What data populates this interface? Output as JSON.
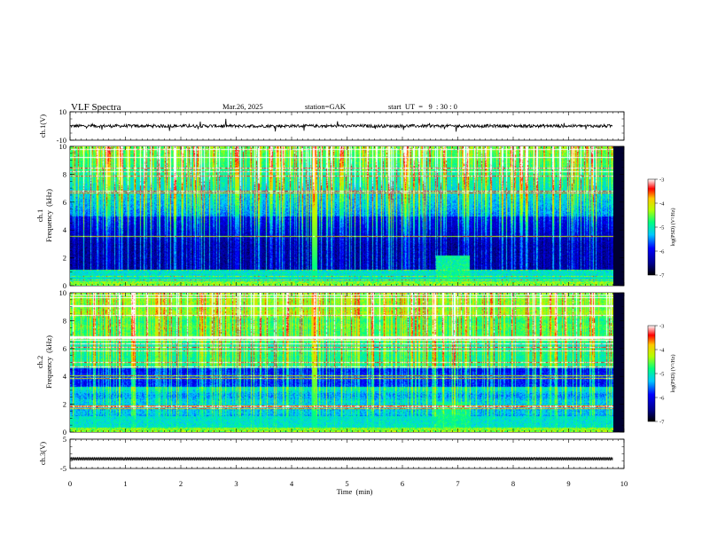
{
  "header": {
    "title": "VLF  Spectra",
    "date": "Mar.26, 2025",
    "station": "station=GAK",
    "start": "start  UT  =   9  : 30 : 0"
  },
  "chart_data": [
    {
      "id": "ch1-waveform",
      "type": "line",
      "ylabel": "ch.1(V)",
      "ylim": [
        -10,
        10
      ],
      "yticks": [
        "10",
        "-10"
      ],
      "baseline": 0,
      "x_extent_min": 9.8
    },
    {
      "id": "ch1-spectrogram",
      "type": "heatmap",
      "ylabel_line1": "ch.1",
      "ylabel_line2": "Frequency  (kHz)",
      "ylim": [
        0,
        10
      ],
      "yticks": [
        "0",
        "2",
        "4",
        "6",
        "8",
        "10"
      ],
      "x_extent_min": 9.8,
      "colorbar": {
        "label": "log(PSD) (V²/Hz)",
        "ticks": [
          "-3",
          "-4",
          "-5",
          "-6",
          "-7"
        ],
        "range": [
          -7,
          -3
        ]
      }
    },
    {
      "id": "ch2-spectrogram",
      "type": "heatmap",
      "ylabel_line1": "ch.2",
      "ylabel_line2": "Frequency  (kHz)",
      "ylim": [
        0,
        10
      ],
      "yticks": [
        "0",
        "2",
        "4",
        "6",
        "8",
        "10"
      ],
      "x_extent_min": 9.8,
      "colorbar": {
        "label": "log(PSD) (V²/Hz)",
        "ticks": [
          "-3",
          "-4",
          "-5",
          "-6",
          "-7"
        ],
        "range": [
          -7,
          -3
        ]
      }
    },
    {
      "id": "ch3-waveform",
      "type": "line",
      "ylabel": "ch.3(V)",
      "ylim": [
        -5,
        5
      ],
      "yticks": [
        "5",
        "-5"
      ],
      "baseline": -1.7,
      "x_extent_min": 9.8
    }
  ],
  "xaxis": {
    "label": "Time  (min)",
    "ticks": [
      "0",
      "1",
      "2",
      "3",
      "4",
      "5",
      "6",
      "7",
      "8",
      "9",
      "10"
    ],
    "range": [
      0,
      10
    ]
  }
}
